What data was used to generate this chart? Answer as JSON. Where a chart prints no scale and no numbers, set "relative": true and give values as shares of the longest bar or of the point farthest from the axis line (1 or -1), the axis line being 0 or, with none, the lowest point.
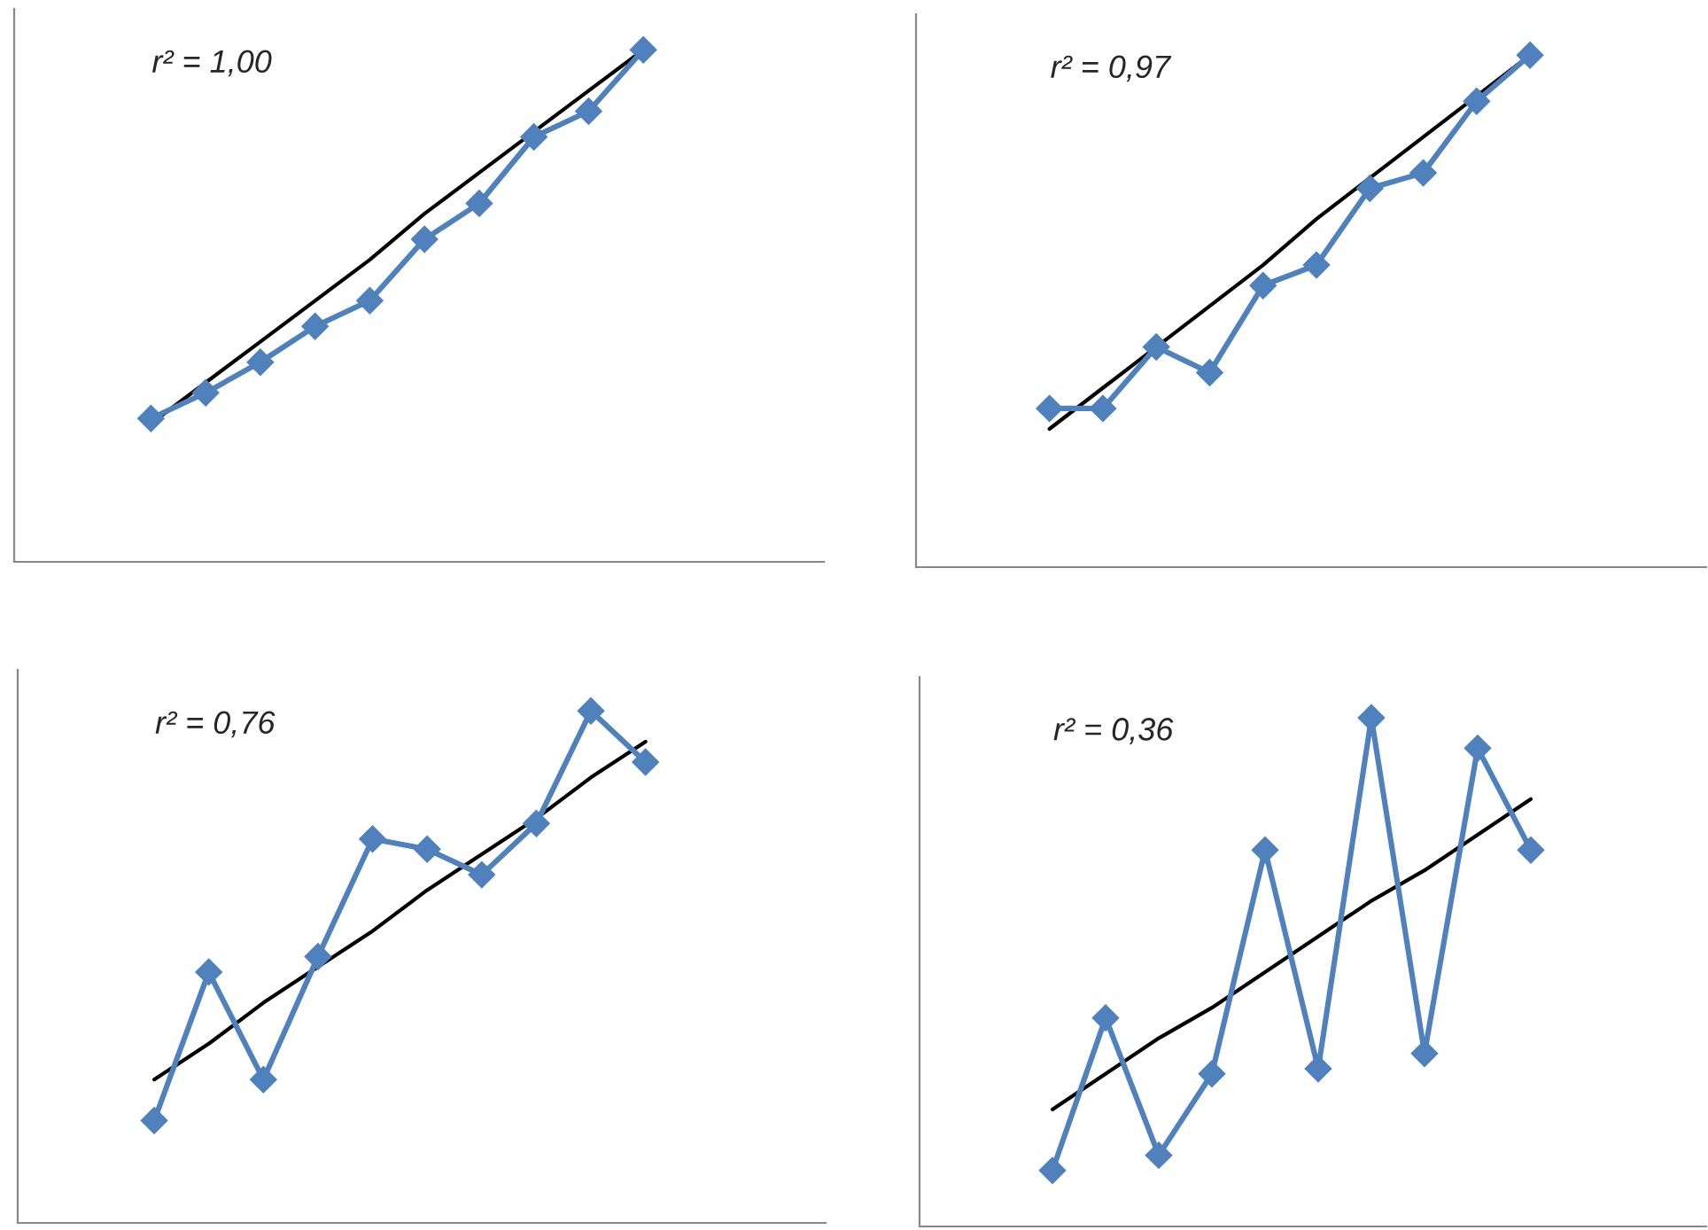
{
  "chart_data": [
    {
      "type": "line",
      "relative": true,
      "annotations": [
        "r² = 1,00"
      ],
      "categories": [
        null,
        null,
        null,
        null,
        null,
        null,
        null,
        null,
        null,
        null
      ],
      "grid": false,
      "legend": false,
      "series": [
        {
          "color": "#4f81bd",
          "marker": "diamond",
          "line_style": "solid",
          "values": [
            0.28,
            0.33,
            0.39,
            0.46,
            0.51,
            0.63,
            0.7,
            0.83,
            0.88,
            1.0
          ]
        },
        {
          "color": "#000000",
          "marker": "none",
          "line_style": "solid",
          "values": [
            0.27,
            0.35,
            0.43,
            0.51,
            0.59,
            0.68,
            0.76,
            0.84,
            0.92,
            1.0
          ]
        }
      ]
    },
    {
      "type": "line",
      "relative": true,
      "annotations": [
        "r² = 0,97"
      ],
      "categories": [
        null,
        null,
        null,
        null,
        null,
        null,
        null,
        null,
        null,
        null
      ],
      "grid": false,
      "legend": false,
      "series": [
        {
          "color": "#4f81bd",
          "marker": "diamond",
          "line_style": "solid",
          "values": [
            0.31,
            0.31,
            0.43,
            0.38,
            0.55,
            0.59,
            0.74,
            0.77,
            0.91,
            1.0
          ]
        },
        {
          "color": "#000000",
          "marker": "none",
          "line_style": "solid",
          "values": [
            0.27,
            0.35,
            0.43,
            0.51,
            0.59,
            0.68,
            0.76,
            0.84,
            0.92,
            1.0
          ]
        }
      ]
    },
    {
      "type": "line",
      "relative": true,
      "annotations": [
        "r² = 0,76"
      ],
      "categories": [
        null,
        null,
        null,
        null,
        null,
        null,
        null,
        null,
        null,
        null
      ],
      "grid": false,
      "legend": false,
      "series": [
        {
          "color": "#4f81bd",
          "marker": "diamond",
          "line_style": "solid",
          "values": [
            0.2,
            0.49,
            0.28,
            0.52,
            0.75,
            0.73,
            0.68,
            0.78,
            1.0,
            0.9
          ]
        },
        {
          "color": "#000000",
          "marker": "none",
          "line_style": "solid",
          "values": [
            0.28,
            0.35,
            0.43,
            0.5,
            0.57,
            0.65,
            0.72,
            0.79,
            0.87,
            0.94
          ]
        }
      ]
    },
    {
      "type": "line",
      "relative": true,
      "annotations": [
        "r² = 0,36"
      ],
      "categories": [
        null,
        null,
        null,
        null,
        null,
        null,
        null,
        null,
        null,
        null
      ],
      "grid": false,
      "legend": false,
      "series": [
        {
          "color": "#4f81bd",
          "marker": "diamond",
          "line_style": "solid",
          "values": [
            0.11,
            0.41,
            0.14,
            0.3,
            0.74,
            0.31,
            1.0,
            0.34,
            0.94,
            0.74
          ]
        },
        {
          "color": "#000000",
          "marker": "none",
          "line_style": "solid",
          "values": [
            0.23,
            0.3,
            0.37,
            0.43,
            0.5,
            0.57,
            0.64,
            0.7,
            0.77,
            0.84
          ]
        }
      ]
    }
  ]
}
